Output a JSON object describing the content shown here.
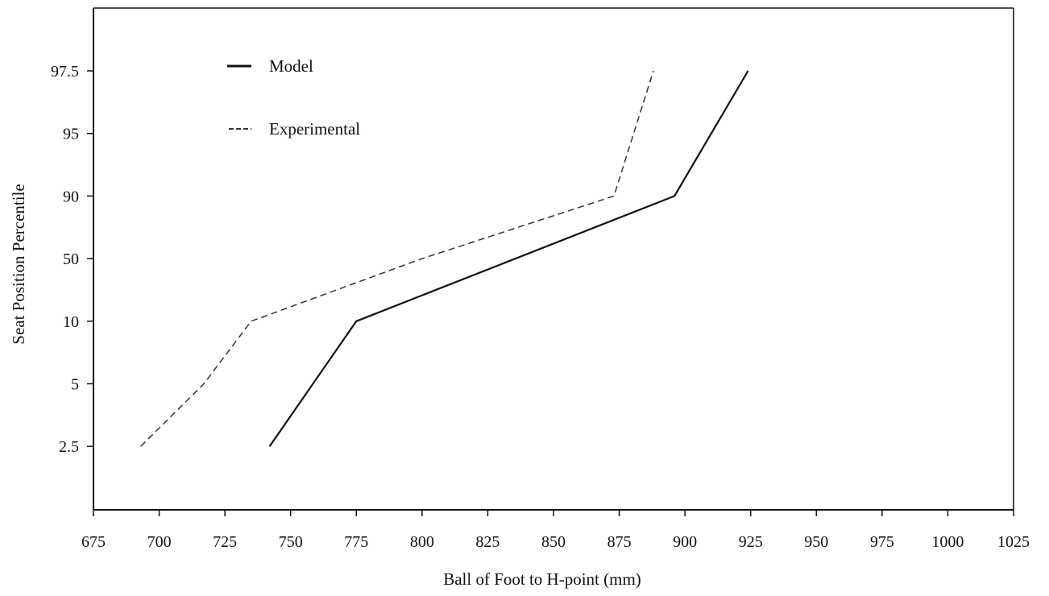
{
  "chart_data": {
    "type": "line",
    "title": "",
    "xlabel": "Ball of Foot to H-point (mm)",
    "ylabel": "Seat  Position  Percentile",
    "xlim": [
      675,
      1025
    ],
    "x_ticks": [
      "675",
      "700",
      "725",
      "750",
      "775",
      "800",
      "825",
      "850",
      "875",
      "900",
      "925",
      "950",
      "975",
      "1000",
      "1025"
    ],
    "y_categories": [
      "2.5",
      "5",
      "10",
      "50",
      "90",
      "95",
      "97.5"
    ],
    "y_axis_scale": "ordinal (equally spaced percentile categories)",
    "grid": false,
    "legend_position": "top-left",
    "series": [
      {
        "name": "Model",
        "line_style": "solid",
        "color": "#111111",
        "points": [
          {
            "x": 742,
            "y": "2.5"
          },
          {
            "x": 775,
            "y": "10"
          },
          {
            "x": 896,
            "y": "90"
          },
          {
            "x": 924,
            "y": "97.5"
          }
        ]
      },
      {
        "name": "Experimental",
        "line_style": "dashed",
        "color": "#333333",
        "points": [
          {
            "x": 693,
            "y": "2.5"
          },
          {
            "x": 717,
            "y": "5"
          },
          {
            "x": 735,
            "y": "10"
          },
          {
            "x": 800,
            "y": "50"
          },
          {
            "x": 873,
            "y": "90"
          },
          {
            "x": 888,
            "y": "97.5"
          }
        ]
      }
    ]
  }
}
